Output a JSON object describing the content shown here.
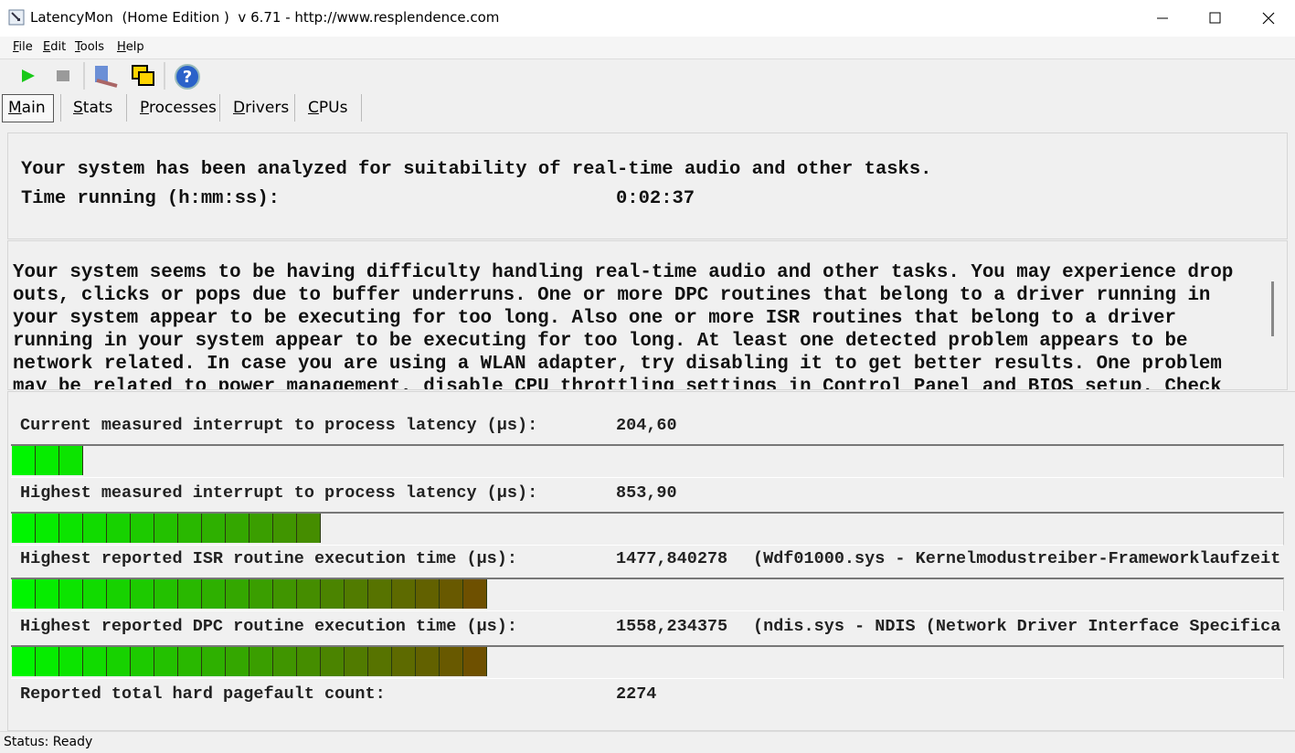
{
  "window": {
    "title": "LatencyMon  (Home Edition )  v 6.71 - http://www.resplendence.com"
  },
  "menu": [
    "File",
    "Edit",
    "Tools",
    "Help"
  ],
  "tabs": [
    "Main",
    "Stats",
    "Processes",
    "Drivers",
    "CPUs"
  ],
  "summary": {
    "headline": "Your system has been analyzed for suitability of real-time audio and other tasks.",
    "time_label": "Time running (h:mm:ss):",
    "time_value": "0:02:37"
  },
  "message": [
    "Your system seems to be having difficulty handling real-time audio and other tasks. You may experience drop",
    "outs, clicks or pops due to buffer underruns. One or more DPC routines that belong to a driver running in",
    "your system appear to be executing for too long. Also one or more ISR routines that belong to a driver",
    "running in your system appear to be executing for too long. At least one detected problem appears to be",
    "network related. In case you are using a WLAN adapter, try disabling it to get better results. One problem",
    "may be related to power management, disable CPU throttling settings in Control Panel and BIOS setup. Check"
  ],
  "metrics": [
    {
      "label": "Current measured interrupt to process latency (µs):",
      "value": "204,60"
    },
    {
      "label": "Highest measured interrupt to process latency (µs):",
      "value": "853,90"
    },
    {
      "label": "Highest reported ISR routine execution time (µs):",
      "value": "1477,840278",
      "detail": "(Wdf01000.sys - Kernelmodustreiber-Frameworklaufzeit"
    },
    {
      "label": "Highest reported DPC routine execution time (µs):",
      "value": "1558,234375",
      "detail": "(ndis.sys - NDIS (Network Driver Interface Specifica"
    },
    {
      "label": "Reported total hard pagefault count:",
      "value": "2274"
    }
  ],
  "status": "Status: Ready"
}
